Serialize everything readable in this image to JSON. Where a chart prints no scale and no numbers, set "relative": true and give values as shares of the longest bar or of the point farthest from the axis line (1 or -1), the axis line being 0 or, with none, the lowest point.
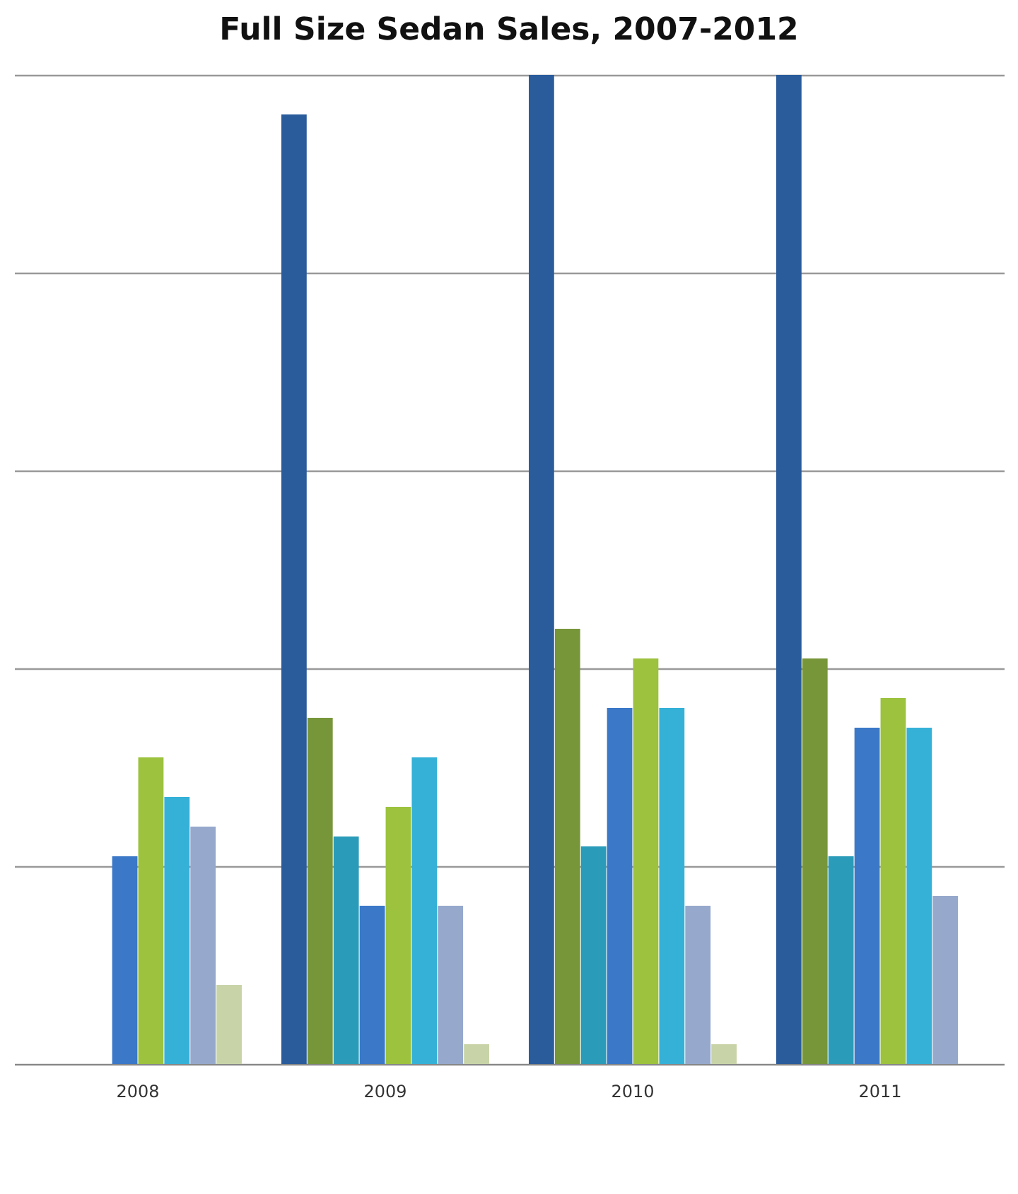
{
  "chart_data": {
    "type": "bar",
    "title": "Full Size Sedan Sales, 2007-2012",
    "relative": true,
    "grid": "y",
    "legend": false,
    "categories": [
      "2008",
      "2009",
      "2010",
      "2011"
    ],
    "series": [
      {
        "color": "#2a5c9c",
        "values": [
          null,
          0.96,
          1,
          1
        ]
      },
      {
        "color": "#77963a",
        "values": [
          null,
          0.35,
          0.44,
          0.41
        ]
      },
      {
        "color": "#2a9bb8",
        "values": [
          null,
          0.23,
          0.22,
          0.21
        ]
      },
      {
        "color": "#3b78c8",
        "values": [
          0.21,
          0.16,
          0.36,
          0.34
        ]
      },
      {
        "color": "#9cc23e",
        "values": [
          0.31,
          0.26,
          0.41,
          0.37
        ]
      },
      {
        "color": "#35b1d8",
        "values": [
          0.27,
          0.31,
          0.36,
          0.34
        ]
      },
      {
        "color": "#96a8cc",
        "values": [
          0.24,
          0.16,
          0.16,
          0.17
        ]
      },
      {
        "color": "#c8d4a8",
        "values": [
          0.08,
          0.02,
          0.02,
          null
        ]
      }
    ]
  }
}
